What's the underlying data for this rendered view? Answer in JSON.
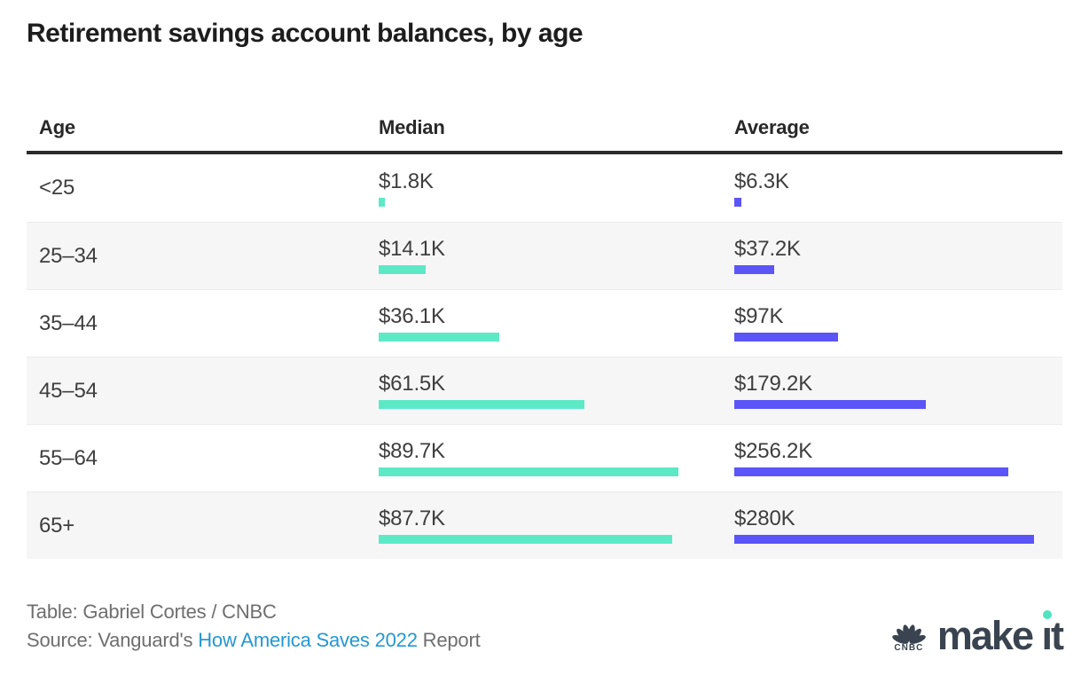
{
  "title": "Retirement savings account balances, by age",
  "table": {
    "columns": [
      "Age",
      "Median",
      "Average"
    ],
    "rows": [
      {
        "age": "<25",
        "median": "$1.8K",
        "average": "$6.3K"
      },
      {
        "age": "25–34",
        "median": "$14.1K",
        "average": "$37.2K"
      },
      {
        "age": "35–44",
        "median": "$36.1K",
        "average": "$97K"
      },
      {
        "age": "45–54",
        "median": "$61.5K",
        "average": "$179.2K"
      },
      {
        "age": "55–64",
        "median": "$89.7K",
        "average": "$256.2K"
      },
      {
        "age": "65+",
        "median": "$87.7K",
        "average": "$280K"
      }
    ]
  },
  "chart_data": {
    "type": "bar",
    "title": "Retirement savings account balances, by age",
    "categories": [
      "<25",
      "25–34",
      "35–44",
      "45–54",
      "55–64",
      "65+"
    ],
    "series": [
      {
        "name": "Median",
        "values": [
          1800,
          14100,
          36100,
          61500,
          89700,
          87700
        ],
        "labels": [
          "$1.8K",
          "$14.1K",
          "$36.1K",
          "$61.5K",
          "$89.7K",
          "$87.7K"
        ],
        "color": "#5ee9c6"
      },
      {
        "name": "Average",
        "values": [
          6300,
          37200,
          97000,
          179200,
          256200,
          280000
        ],
        "labels": [
          "$6.3K",
          "$37.2K",
          "$97K",
          "$179.2K",
          "$256.2K",
          "$280K"
        ],
        "color": "#5b55f7"
      }
    ],
    "layout": "horizontal bars inside table cells; each column scaled to its own maximum value"
  },
  "footer": {
    "credit": "Table: Gabriel Cortes / CNBC",
    "source_prefix": "Source: Vanguard's ",
    "source_link": "How America Saves 2022",
    "source_suffix": " Report",
    "logo": {
      "brand": "CNBC",
      "text": "make it"
    }
  },
  "colors": {
    "median_bar": "#5ee9c6",
    "average_bar": "#5b55f7",
    "link": "#2398d2",
    "logo_slate": "#3a4450",
    "logo_dot_green": "#4fe3c0"
  }
}
